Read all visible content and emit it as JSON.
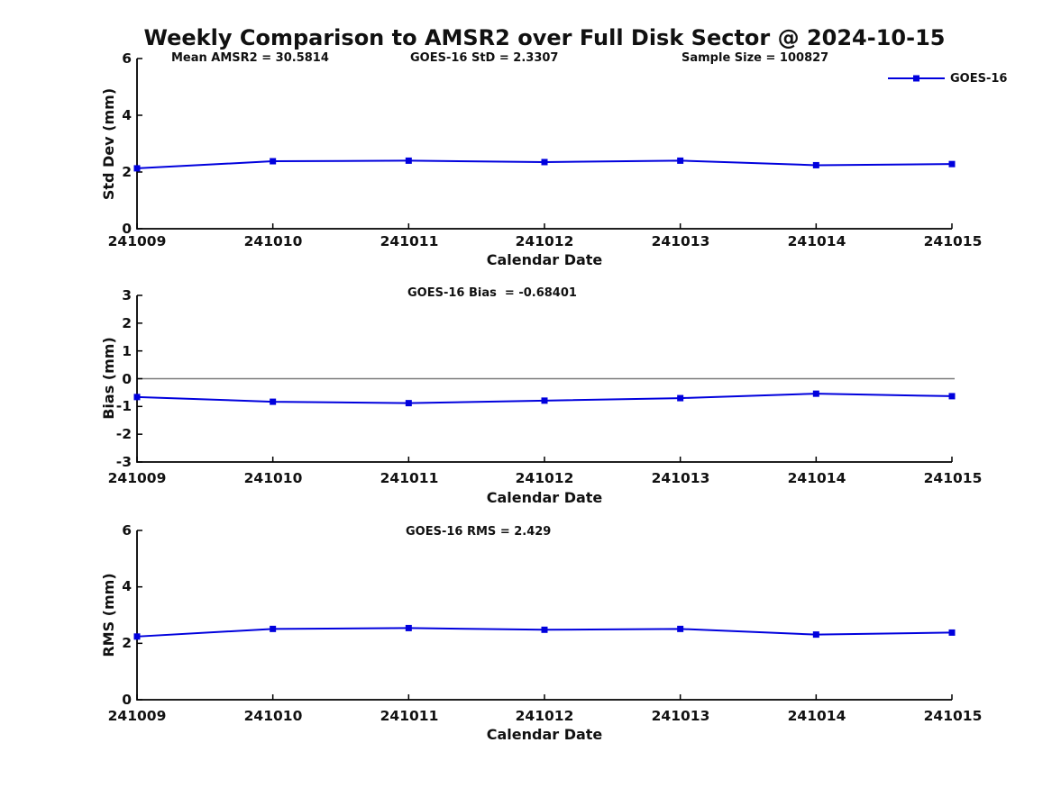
{
  "title": "Weekly Comparison to AMSR2 over Full Disk Sector @ 2024-10-15",
  "legend": {
    "label": "GOES-16"
  },
  "colors": {
    "series": "#0000dd",
    "zero_line": "#7a7a7a",
    "axis": "#000000",
    "text": "#111111",
    "background": "#ffffff"
  },
  "chart_data": [
    {
      "type": "line",
      "id": "stddev",
      "annotations": [
        "Mean AMSR2 = 30.5814",
        "GOES-16 StD = 2.3307",
        "Sample Size = 100827"
      ],
      "categories": [
        "241009",
        "241010",
        "241011",
        "241012",
        "241013",
        "241014",
        "241015"
      ],
      "series": [
        {
          "name": "GOES-16",
          "values": [
            2.13,
            2.38,
            2.4,
            2.35,
            2.4,
            2.24,
            2.28
          ]
        }
      ],
      "xlabel": "Calendar Date",
      "ylabel": "Std Dev (mm)",
      "ylim": [
        0,
        6
      ],
      "yticks": [
        0,
        2,
        4,
        6
      ],
      "grid": false,
      "zero_line": false,
      "legend_position": "upper-right-outside",
      "marker": "square"
    },
    {
      "type": "line",
      "id": "bias",
      "annotations": [
        "GOES-16 Bias  = -0.68401"
      ],
      "categories": [
        "241009",
        "241010",
        "241011",
        "241012",
        "241013",
        "241014",
        "241015"
      ],
      "series": [
        {
          "name": "GOES-16",
          "values": [
            -0.66,
            -0.83,
            -0.88,
            -0.79,
            -0.7,
            -0.54,
            -0.63
          ]
        }
      ],
      "xlabel": "Calendar Date",
      "ylabel": "Bias (mm)",
      "ylim": [
        -3,
        3
      ],
      "yticks": [
        3,
        2,
        1,
        0,
        -1,
        -2,
        -3
      ],
      "grid": false,
      "zero_line": true,
      "marker": "square"
    },
    {
      "type": "line",
      "id": "rms",
      "annotations": [
        "GOES-16 RMS = 2.429"
      ],
      "categories": [
        "241009",
        "241010",
        "241011",
        "241012",
        "241013",
        "241014",
        "241015"
      ],
      "series": [
        {
          "name": "GOES-16",
          "values": [
            2.24,
            2.51,
            2.54,
            2.48,
            2.51,
            2.31,
            2.38
          ]
        }
      ],
      "xlabel": "Calendar Date",
      "ylabel": "RMS (mm)",
      "ylim": [
        0,
        6
      ],
      "yticks": [
        0,
        2,
        4,
        6
      ],
      "grid": false,
      "zero_line": false,
      "marker": "square"
    }
  ]
}
